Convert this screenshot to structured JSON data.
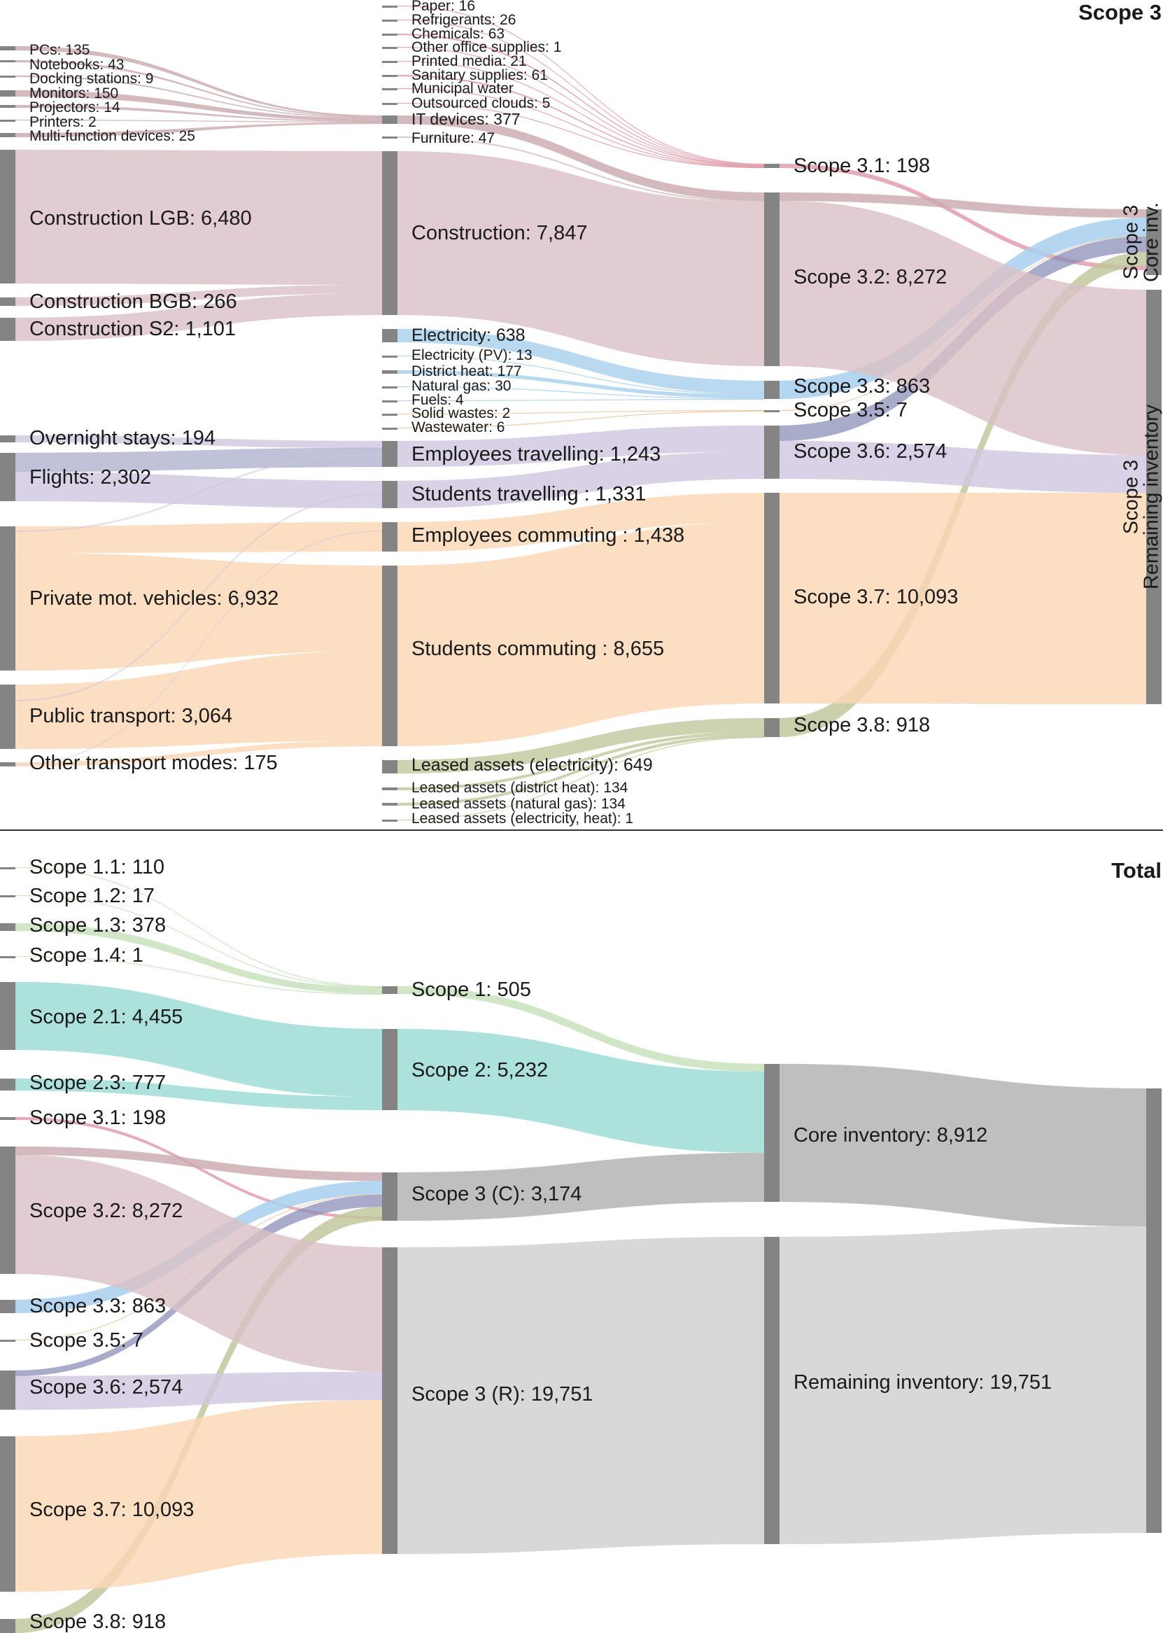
{
  "sections": [
    {
      "id": "scope3",
      "title": "Scope 3",
      "columns": [
        [
          {
            "id": "pcs",
            "label": "PCs:",
            "value": "135"
          },
          {
            "id": "notebooks",
            "label": "Notebooks:",
            "value": "43"
          },
          {
            "id": "docking",
            "label": "Docking stations:",
            "value": "9"
          },
          {
            "id": "monitors",
            "label": "Monitors:",
            "value": "150"
          },
          {
            "id": "projectors",
            "label": "Projectors:",
            "value": "14"
          },
          {
            "id": "printers",
            "label": "Printers:",
            "value": "2"
          },
          {
            "id": "mfd",
            "label": "Multi-function devices:",
            "value": "25"
          },
          {
            "id": "conslgb",
            "label": "Construction LGB:",
            "value": "6,480"
          },
          {
            "id": "consbgb",
            "label": "Construction BGB:",
            "value": "266"
          },
          {
            "id": "conss2",
            "label": "Construction S2:",
            "value": "1,101"
          },
          {
            "id": "overnight",
            "label": "Overnight stays:",
            "value": "194"
          },
          {
            "id": "flights",
            "label": "Flights:",
            "value": "2,302"
          },
          {
            "id": "pmv",
            "label": "Private mot. vehicles:",
            "value": "6,932"
          },
          {
            "id": "pubtrans",
            "label": "Public transport:",
            "value": "3,064"
          },
          {
            "id": "othertrans",
            "label": "Other transport modes:",
            "value": "175"
          }
        ],
        [
          {
            "id": "paper",
            "label": "Paper:",
            "value": "16"
          },
          {
            "id": "refrig",
            "label": "Refrigerants:",
            "value": "26"
          },
          {
            "id": "chem",
            "label": "Chemicals:",
            "value": "63"
          },
          {
            "id": "office",
            "label": "Other office supplies:",
            "value": "1"
          },
          {
            "id": "printed",
            "label": "Printed media:",
            "value": "21"
          },
          {
            "id": "sanitary",
            "label": "Sanitary supplies:",
            "value": "61"
          },
          {
            "id": "water",
            "label": "Municipal water",
            "value": ""
          },
          {
            "id": "clouds",
            "label": "Outsourced clouds:",
            "value": "5"
          },
          {
            "id": "itdev",
            "label": "IT devices:",
            "value": "377"
          },
          {
            "id": "furniture",
            "label": "Furniture:",
            "value": "47"
          },
          {
            "id": "construction",
            "label": "Construction:",
            "value": "7,847"
          },
          {
            "id": "electricity",
            "label": "Electricity:",
            "value": "638"
          },
          {
            "id": "elecpv",
            "label": "Electricity (PV):",
            "value": "13"
          },
          {
            "id": "districtheat",
            "label": "District heat:",
            "value": "177"
          },
          {
            "id": "natgas",
            "label": "Natural gas:",
            "value": "30"
          },
          {
            "id": "fuels",
            "label": "Fuels:",
            "value": "4"
          },
          {
            "id": "solidwaste",
            "label": "Solid wastes:",
            "value": "2"
          },
          {
            "id": "wastewater",
            "label": "Wastewater:",
            "value": "6"
          },
          {
            "id": "emptravel",
            "label": "Employees travelling:",
            "value": "1,243"
          },
          {
            "id": "stutravel",
            "label": "Students travelling :",
            "value": "1,331"
          },
          {
            "id": "empcommute",
            "label": "Employees commuting :",
            "value": "1,438"
          },
          {
            "id": "stucommute",
            "label": "Students commuting :",
            "value": "8,655"
          },
          {
            "id": "laelec",
            "label": "Leased assets (electricity):",
            "value": "649"
          },
          {
            "id": "laheat",
            "label": "Leased assets (district heat):",
            "value": "134"
          },
          {
            "id": "lagas",
            "label": "Leased assets (natural gas):",
            "value": "134"
          },
          {
            "id": "laelecheat",
            "label": "Leased assets (electricity, heat):",
            "value": "1"
          }
        ],
        [
          {
            "id": "s31",
            "label": "Scope 3.1:",
            "value": "198"
          },
          {
            "id": "s32",
            "label": "Scope 3.2:",
            "value": "8,272"
          },
          {
            "id": "s33",
            "label": "Scope 3.3:",
            "value": "863"
          },
          {
            "id": "s35",
            "label": "Scope 3.5:",
            "value": "7"
          },
          {
            "id": "s36",
            "label": "Scope 3.6:",
            "value": "2,574"
          },
          {
            "id": "s37",
            "label": "Scope 3.7:",
            "value": "10,093"
          },
          {
            "id": "s38",
            "label": "Scope 3.8:",
            "value": "918"
          }
        ],
        [
          {
            "id": "core",
            "label": "Scope 3|Core inv.",
            "value": ""
          },
          {
            "id": "remaining",
            "label": "Scope 3|Remaining inventory",
            "value": ""
          }
        ]
      ]
    },
    {
      "id": "total",
      "title": "Total",
      "columns": [
        [
          {
            "id": "t11",
            "label": "Scope 1.1:",
            "value": "110"
          },
          {
            "id": "t12",
            "label": "Scope 1.2:",
            "value": "17"
          },
          {
            "id": "t13",
            "label": "Scope 1.3:",
            "value": "378"
          },
          {
            "id": "t14",
            "label": "Scope 1.4:",
            "value": "1"
          },
          {
            "id": "t21",
            "label": "Scope 2.1:",
            "value": "4,455"
          },
          {
            "id": "t23",
            "label": "Scope 2.3:",
            "value": "777"
          },
          {
            "id": "t31",
            "label": "Scope 3.1:",
            "value": "198"
          },
          {
            "id": "t32",
            "label": "Scope 3.2:",
            "value": "8,272"
          },
          {
            "id": "t33",
            "label": "Scope 3.3:",
            "value": "863"
          },
          {
            "id": "t35",
            "label": "Scope 3.5:",
            "value": "7"
          },
          {
            "id": "t36",
            "label": "Scope 3.6:",
            "value": "2,574"
          },
          {
            "id": "t37",
            "label": "Scope 3.7:",
            "value": "10,093"
          },
          {
            "id": "t38",
            "label": "Scope 3.8:",
            "value": "918"
          }
        ],
        [
          {
            "id": "ts1",
            "label": "Scope 1:",
            "value": "505"
          },
          {
            "id": "ts2",
            "label": "Scope 2:",
            "value": "5,232"
          },
          {
            "id": "ts3c",
            "label": "Scope 3 (C):",
            "value": "3,174"
          },
          {
            "id": "ts3r",
            "label": "Scope 3 (R):",
            "value": "19,751"
          }
        ],
        [
          {
            "id": "tcore",
            "label": "Core inventory:",
            "value": "8,912"
          },
          {
            "id": "trem",
            "label": "Remaining inventory:",
            "value": "19,751"
          }
        ],
        [
          {
            "id": "tall",
            "label": "",
            "value": ""
          }
        ]
      ]
    }
  ],
  "colors": {
    "node": "#848484",
    "it": "#c9a9ae",
    "purchased": "#de98a7",
    "construction": "#d9c1c6",
    "energy": "#a8cfee",
    "energy_dark": "#8b8fb8",
    "waste": "#e8c49c",
    "travel": "#cfc5e0",
    "commute": "#fbd6b4",
    "leased": "#c2c79c",
    "scope1": "#c8e2bc",
    "scope2": "#9edcd6",
    "core": "#b8b8b8",
    "remaining": "#d4d4d4"
  }
}
